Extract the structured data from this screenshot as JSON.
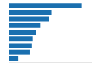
{
  "chart_data": {
    "type": "bar",
    "orientation": "horizontal",
    "categories": [
      null,
      null,
      null,
      null,
      null,
      null,
      null,
      null,
      null
    ],
    "values": [
      14.5,
      8.5,
      8.0,
      6.2,
      5.5,
      4.8,
      4.5,
      4.2,
      1.8
    ],
    "color": "#1a6faf",
    "xlim": [
      0,
      16.5
    ],
    "xticks": [],
    "grid": false,
    "tick_labels": false
  }
}
